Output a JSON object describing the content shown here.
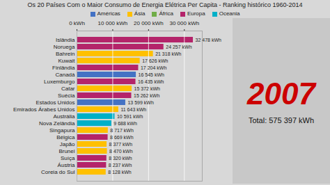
{
  "chart_data": {
    "type": "bar",
    "orientation": "horizontal",
    "title": "Os 20 Países Com o Maior Consumo de Energia Elétrica Per Capita - Ranking histórico 1960-2014",
    "categories": [
      "Islândia",
      "Noruega",
      "Bahrein",
      "Kuwait",
      "Finlândia",
      "Canadá",
      "Luxemburgo",
      "Catar",
      "Suécia",
      "Estados Unidos",
      "Emirados Árabes Unidos",
      "Austrália",
      "Nova Zelândia",
      "Singapura",
      "Bélgica",
      "Japão",
      "Brunei",
      "Suíça",
      "Áustria",
      "Coreia do Sul"
    ],
    "series": [
      {
        "name": "Américas",
        "color": "#4472c4",
        "values": [
          null,
          null,
          null,
          null,
          null,
          16545,
          null,
          null,
          null,
          13599,
          null,
          null,
          null,
          null,
          null,
          null,
          null,
          null,
          null,
          null
        ],
        "value_labels": [
          null,
          null,
          null,
          null,
          null,
          "16 545 kWh",
          null,
          null,
          null,
          "13 599 kWh",
          null,
          null,
          null,
          null,
          null,
          null,
          null,
          null,
          null,
          null
        ]
      },
      {
        "name": "Ásia",
        "color": "#ffc000",
        "values": [
          null,
          null,
          21318,
          17626,
          null,
          null,
          null,
          15372,
          null,
          null,
          11643,
          null,
          null,
          8717,
          null,
          8377,
          8470,
          null,
          null,
          8128
        ],
        "value_labels": [
          null,
          null,
          "21 318 kWh",
          "17 626 kWh",
          null,
          null,
          null,
          "15 372 kWh",
          null,
          null,
          "11 643 kWh",
          null,
          null,
          "8 717 kWh",
          null,
          "8 377 kWh",
          "8 470 kWh",
          null,
          null,
          "8 128 kWh"
        ]
      },
      {
        "name": "África",
        "color": "#70ad47",
        "values": [
          null,
          null,
          null,
          null,
          null,
          null,
          null,
          null,
          null,
          null,
          null,
          null,
          null,
          null,
          null,
          null,
          null,
          null,
          null,
          null
        ],
        "value_labels": [
          null,
          null,
          null,
          null,
          null,
          null,
          null,
          null,
          null,
          null,
          null,
          null,
          null,
          null,
          null,
          null,
          null,
          null,
          null,
          null
        ]
      },
      {
        "name": "Europa",
        "color": "#b4246a",
        "values": [
          32478,
          24257,
          null,
          null,
          17204,
          null,
          16435,
          null,
          15262,
          null,
          null,
          null,
          null,
          null,
          8669,
          null,
          null,
          8320,
          8237,
          null
        ],
        "value_labels": [
          "32 478 kWh",
          "24 257 kWh",
          null,
          null,
          "17 204 kWh",
          null,
          "16 435 kWh",
          null,
          "15 262 kWh",
          null,
          null,
          null,
          null,
          null,
          "8 669 kWh",
          null,
          null,
          "8 320 kWh",
          "8 237 kWh",
          null
        ]
      },
      {
        "name": "Oceania",
        "color": "#00b0c8",
        "values": [
          null,
          null,
          null,
          null,
          null,
          null,
          null,
          null,
          null,
          null,
          null,
          10591,
          9688,
          null,
          null,
          null,
          null,
          null,
          null,
          null
        ],
        "value_labels": [
          null,
          null,
          null,
          null,
          null,
          null,
          null,
          null,
          null,
          null,
          null,
          "10 591 kWh",
          "9 688 kWh",
          null,
          null,
          null,
          null,
          null,
          null,
          null
        ]
      }
    ],
    "xlim": [
      0,
      35000
    ],
    "xticks": [
      {
        "value": 0,
        "label": "0 kWh"
      },
      {
        "value": 10000,
        "label": "10 000 kWh"
      },
      {
        "value": 20000,
        "label": "20 000 kWh"
      },
      {
        "value": 30000,
        "label": "30 000 kWh"
      }
    ],
    "grid": true,
    "data_labels": true,
    "annotations": [
      {
        "text": "2007",
        "color": "#cc0000"
      },
      {
        "text": "Total: 575 397 kWh"
      }
    ]
  }
}
